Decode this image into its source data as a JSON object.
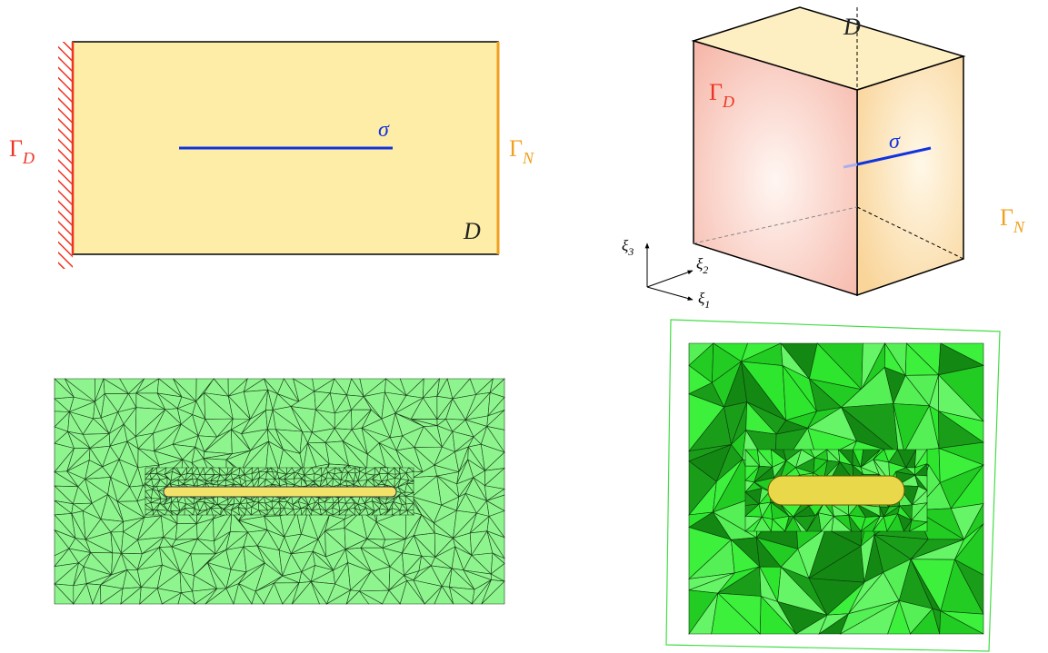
{
  "panel_2d": {
    "dirichlet": {
      "base": "Γ",
      "sub": "D"
    },
    "neumann": {
      "base": "Γ",
      "sub": "N"
    },
    "crack": "σ",
    "domain": "D"
  },
  "panel_3d": {
    "dirichlet": {
      "base": "Γ",
      "sub": "D"
    },
    "neumann": {
      "base": "Γ",
      "sub": "N"
    },
    "crack": "σ",
    "domain": "D",
    "axes": [
      {
        "base": "ξ",
        "sub": "3"
      },
      {
        "base": "ξ",
        "sub": "2"
      },
      {
        "base": "ξ",
        "sub": "1"
      }
    ]
  }
}
